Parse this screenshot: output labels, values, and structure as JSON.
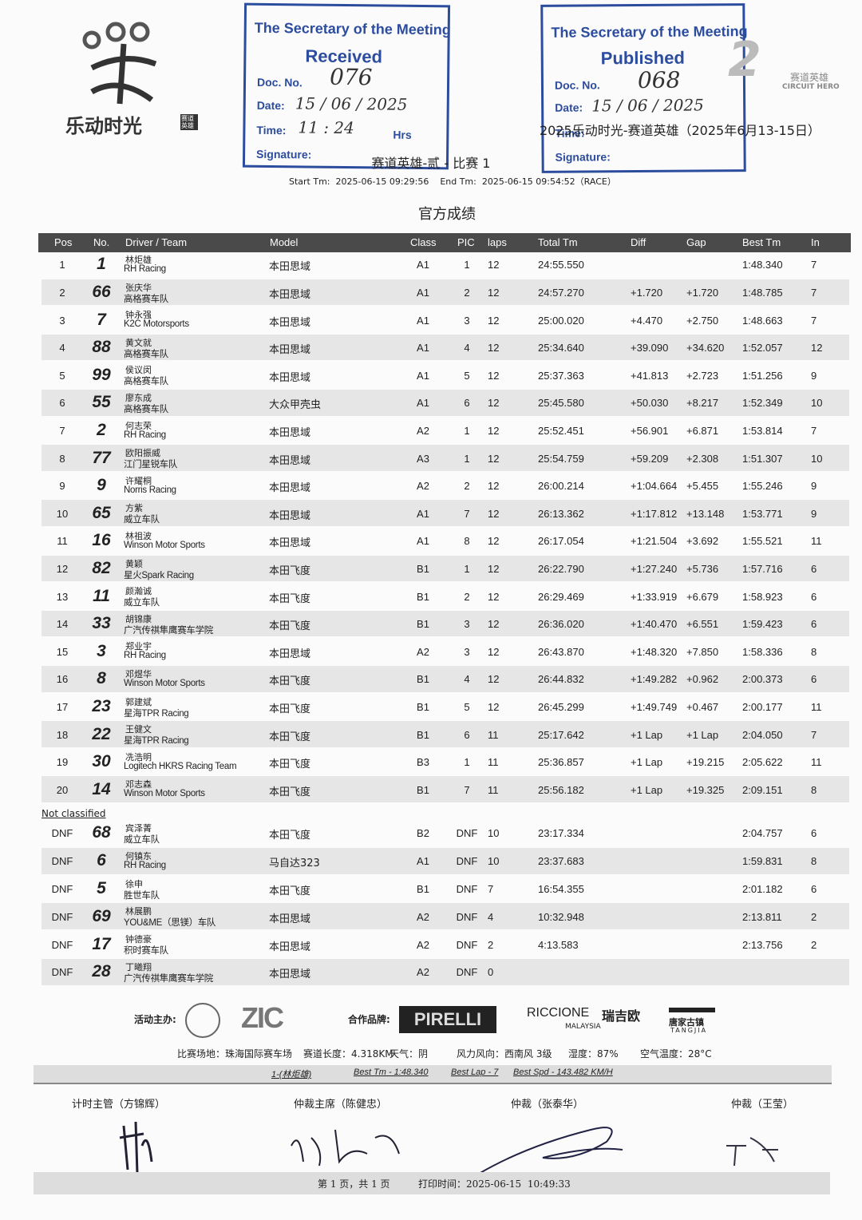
{
  "header": {
    "logo_text": "乐动时光",
    "logo_badge": "赛道英雄",
    "brand_mark": "赛道英雄",
    "brand_mark_en": "CIRCUIT HERO",
    "event": "2025乐动时光-赛道英雄（2025年6月13-15日）",
    "race_title": "赛道英雄-贰 - 比赛 1",
    "timing": "Start Tm:  2025-06-15 09:29:56    End Tm:  2025-06-15 09:54:52（RACE）",
    "doc_title": "官方成绩"
  },
  "stamps": [
    {
      "heading": "The Secretary of the Meeting",
      "status": "Received",
      "doc_label": "Doc. No.",
      "doc_no": "076",
      "date_label": "Date:",
      "date": "15 / 06 / 2025",
      "time_label": "Time:",
      "time": "11 : 24",
      "hrs": "Hrs",
      "signature_label": "Signature:"
    },
    {
      "heading": "The Secretary of the Meeting",
      "status": "Published",
      "doc_label": "Doc. No.",
      "doc_no": "068",
      "date_label": "Date:",
      "date": "15 / 06 / 2025",
      "time_label": "Time:",
      "signature_label": "Signature:"
    }
  ],
  "table": {
    "columns": [
      "Pos",
      "No.",
      "Driver / Team",
      "Model",
      "Class",
      "PIC",
      "laps",
      "Total Tm",
      "Diff",
      "Gap",
      "Best Tm",
      "In"
    ],
    "rows": [
      [
        1,
        1,
        "林炬雄",
        "RH Racing",
        "本田思域",
        "A1",
        1,
        12,
        "24:55.550",
        null,
        null,
        "1:48.340",
        7
      ],
      [
        2,
        66,
        "张庆华",
        "高格赛车队",
        "本田思域",
        "A1",
        2,
        12,
        "24:57.270",
        "+1.720",
        "+1.720",
        "1:48.785",
        7
      ],
      [
        3,
        7,
        "钟永强",
        "K2C Motorsports",
        "本田思域",
        "A1",
        3,
        12,
        "25:00.020",
        "+4.470",
        "+2.750",
        "1:48.663",
        7
      ],
      [
        4,
        88,
        "黄文就",
        "高格赛车队",
        "本田思域",
        "A1",
        4,
        12,
        "25:34.640",
        "+39.090",
        "+34.620",
        "1:52.057",
        12
      ],
      [
        5,
        99,
        "侯议闵",
        "高格赛车队",
        "本田思域",
        "A1",
        5,
        12,
        "25:37.363",
        "+41.813",
        "+2.723",
        "1:51.256",
        9
      ],
      [
        6,
        55,
        "廖东成",
        "高格赛车队",
        "大众甲壳虫",
        "A1",
        6,
        12,
        "25:45.580",
        "+50.030",
        "+8.217",
        "1:52.349",
        10
      ],
      [
        7,
        2,
        "何志荣",
        "RH Racing",
        "本田思域",
        "A2",
        1,
        12,
        "25:52.451",
        "+56.901",
        "+6.871",
        "1:53.814",
        7
      ],
      [
        8,
        77,
        "欧阳振威",
        "江门星锐车队",
        "本田思域",
        "A3",
        1,
        12,
        "25:54.759",
        "+59.209",
        "+2.308",
        "1:51.307",
        10
      ],
      [
        9,
        9,
        "许耀桐",
        "Norris Racing",
        "本田思域",
        "A2",
        2,
        12,
        "26:00.214",
        "+1:04.664",
        "+5.455",
        "1:55.246",
        9
      ],
      [
        10,
        65,
        "方紫",
        "威立车队",
        "本田思域",
        "A1",
        7,
        12,
        "26:13.362",
        "+1:17.812",
        "+13.148",
        "1:53.771",
        9
      ],
      [
        11,
        16,
        "林祖波",
        "Winson Motor Sports",
        "本田思域",
        "A1",
        8,
        12,
        "26:17.054",
        "+1:21.504",
        "+3.692",
        "1:55.521",
        11
      ],
      [
        12,
        82,
        "黄颖",
        "星火Spark Racing",
        "本田飞度",
        "B1",
        1,
        12,
        "26:22.790",
        "+1:27.240",
        "+5.736",
        "1:57.716",
        6
      ],
      [
        13,
        11,
        "颜瀚诚",
        "威立车队",
        "本田飞度",
        "B1",
        2,
        12,
        "26:29.469",
        "+1:33.919",
        "+6.679",
        "1:58.923",
        6
      ],
      [
        14,
        33,
        "胡锦康",
        "广汽传祺隼鹰赛车学院",
        "本田飞度",
        "B1",
        3,
        12,
        "26:36.020",
        "+1:40.470",
        "+6.551",
        "1:59.423",
        6
      ],
      [
        15,
        3,
        "郑业宇",
        "RH Racing",
        "本田思域",
        "A2",
        3,
        12,
        "26:43.870",
        "+1:48.320",
        "+7.850",
        "1:58.336",
        8
      ],
      [
        16,
        8,
        "邓煜华",
        "Winson Motor Sports",
        "本田飞度",
        "B1",
        4,
        12,
        "26:44.832",
        "+1:49.282",
        "+0.962",
        "2:00.373",
        6
      ],
      [
        17,
        23,
        "郭建斌",
        "星海TPR Racing",
        "本田飞度",
        "B1",
        5,
        12,
        "26:45.299",
        "+1:49.749",
        "+0.467",
        "2:00.177",
        11
      ],
      [
        18,
        22,
        "王健文",
        "星海TPR Racing",
        "本田飞度",
        "B1",
        6,
        11,
        "25:17.642",
        "+1 Lap",
        "+1 Lap",
        "2:04.050",
        7
      ],
      [
        19,
        30,
        "冼浩明",
        "Logitech HKRS Racing Team",
        "本田飞度",
        "B3",
        1,
        11,
        "25:36.857",
        "+1 Lap",
        "+19.215",
        "2:05.622",
        11
      ],
      [
        20,
        14,
        "邓志森",
        "Winson Motor Sports",
        "本田飞度",
        "B1",
        7,
        11,
        "25:56.182",
        "+1 Lap",
        "+19.325",
        "2:09.151",
        8
      ]
    ],
    "not_classified_label": "Not classified",
    "dnf_rows": [
      [
        "DNF",
        68,
        "宾泽菁",
        "威立车队",
        "本田飞度",
        "B2",
        "DNF",
        10,
        "23:17.334",
        null,
        null,
        "2:04.757",
        6
      ],
      [
        "DNF",
        6,
        "何镇东",
        "RH Racing",
        "马自达323",
        "A1",
        "DNF",
        10,
        "23:37.683",
        null,
        null,
        "1:59.831",
        8
      ],
      [
        "DNF",
        5,
        "徐申",
        "胜世车队",
        "本田飞度",
        "B1",
        "DNF",
        7,
        "16:54.355",
        null,
        null,
        "2:01.182",
        6
      ],
      [
        "DNF",
        69,
        "林展鹏",
        "YOU&ME（思镁）车队",
        "本田思域",
        "A2",
        "DNF",
        4,
        "10:32.948",
        null,
        null,
        "2:13.811",
        2
      ],
      [
        "DNF",
        17,
        "钟德豪",
        "积时赛车队",
        "本田思域",
        "A2",
        "DNF",
        2,
        "4:13.583",
        null,
        null,
        "2:13.756",
        2
      ],
      [
        "DNF",
        28,
        "丁曦翔",
        "广汽传祺隼鹰赛车学院",
        "本田思域",
        "A2",
        "DNF",
        0,
        null,
        null,
        null,
        null,
        null
      ]
    ]
  },
  "sponsors": {
    "host_label": "活动主办:",
    "host": "ZIC",
    "partner_label": "合作品牌:",
    "pirelli": "PIRELLI",
    "riccione": "RICCIONE",
    "malaysia": "MALAYSIA",
    "riccione_cn": "瑞吉欧",
    "tangjia_cn": "唐家古镇",
    "tangjia": "TANGJIA"
  },
  "conditions": [
    "比赛场地：珠海国际赛车场",
    "赛道长度：4.318KM",
    "天气：阴",
    "风力风向：西南风 3级",
    "湿度：87%",
    "空气温度：28°C"
  ],
  "fastest": [
    "1-(林炬雄)",
    "Best Tm - 1:48.340",
    "Best Lap - 7",
    "Best Spd - 143.482 KM/H"
  ],
  "officials": [
    "计时主管（方锦辉）",
    "仲裁主席（陈健忠）",
    "仲裁（张泰华）",
    "仲裁（王莹）"
  ],
  "footer": {
    "page": "第 1 页，共 1 页",
    "printed": "打印时间：2025-06-15  10:49:33"
  }
}
